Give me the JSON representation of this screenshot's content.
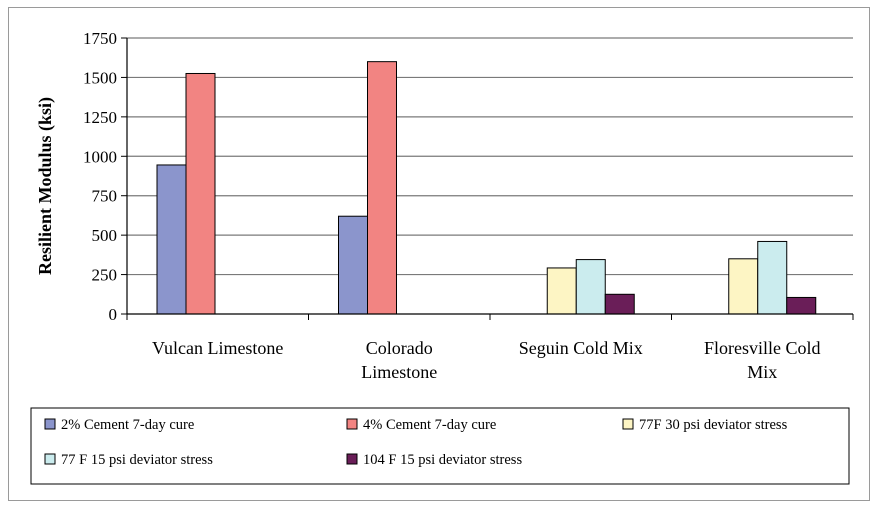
{
  "chart_data": {
    "type": "bar",
    "ylabel": "Resilient Modulus (ksi)",
    "xlabel": "",
    "ylim": [
      0,
      1750
    ],
    "yticks": [
      0,
      250,
      500,
      750,
      1000,
      1250,
      1500,
      1750
    ],
    "grid": true,
    "legend_position": "bottom",
    "categories": [
      [
        "Vulcan Limestone"
      ],
      [
        "Colorado",
        "Limestone"
      ],
      [
        "Seguin Cold Mix"
      ],
      [
        "Floresville Cold",
        "Mix"
      ]
    ],
    "series": [
      {
        "name": "2% Cement 7-day cure",
        "color": "#8b95cc",
        "values": [
          945,
          620,
          null,
          null
        ]
      },
      {
        "name": "4% Cement 7-day cure",
        "color": "#f28482",
        "values": [
          1525,
          1600,
          null,
          null
        ]
      },
      {
        "name": "77F 30 psi deviator stress",
        "color": "#fdf5c4",
        "values": [
          null,
          null,
          292,
          350
        ]
      },
      {
        "name": "77 F 15 psi deviator stress",
        "color": "#cbecee",
        "values": [
          null,
          null,
          345,
          460
        ]
      },
      {
        "name": "104 F 15 psi deviator stress",
        "color": "#6a1e58",
        "values": [
          null,
          null,
          125,
          105
        ]
      }
    ]
  }
}
